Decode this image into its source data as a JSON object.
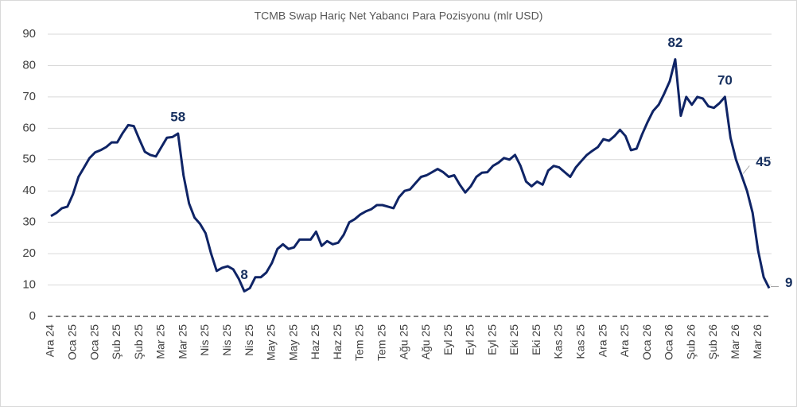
{
  "chart_data": {
    "type": "line",
    "title": "TCMB Swap Hariç Net Yabancı Para Pozisyonu (mlr USD)",
    "color": "#0f2466",
    "ylim": [
      0,
      90
    ],
    "yticks": [
      0,
      10,
      20,
      30,
      40,
      50,
      60,
      70,
      80,
      90
    ],
    "grid": true,
    "categories": [
      "Ara 24",
      null,
      null,
      null,
      "Oca 25",
      null,
      null,
      null,
      "Oca 25",
      null,
      null,
      null,
      "Şub 25",
      null,
      null,
      null,
      "Şub 25",
      null,
      null,
      null,
      "Mar 25",
      null,
      null,
      null,
      "Mar 25",
      null,
      null,
      null,
      "Nis 25",
      null,
      null,
      null,
      "Nis 25",
      null,
      null,
      null,
      "Nis 25",
      null,
      null,
      null,
      "May 25",
      null,
      null,
      null,
      "May 25",
      null,
      null,
      null,
      "Haz 25",
      null,
      null,
      null,
      "Haz 25",
      null,
      null,
      null,
      "Tem 25",
      null,
      null,
      null,
      "Tem 25",
      null,
      null,
      null,
      "Ağu 25",
      null,
      null,
      null,
      "Ağu 25",
      null,
      null,
      null,
      "Eyl 25",
      null,
      null,
      null,
      "Eyl 25",
      null,
      null,
      null,
      "Eyl 25",
      null,
      null,
      null,
      "Eki 25",
      null,
      null,
      null,
      "Eki 25",
      null,
      null,
      null,
      "Kas 25",
      null,
      null,
      null,
      "Kas 25",
      null,
      null,
      null,
      "Ara 25",
      null,
      null,
      null,
      "Ara 25",
      null,
      null,
      null,
      "Oca 26",
      null,
      null,
      null,
      "Oca 26",
      null,
      null,
      null,
      "Şub 26",
      null,
      null,
      null,
      "Şub 26",
      null,
      null,
      null,
      "Mar 26",
      null,
      null,
      null,
      "Mar 26",
      null,
      null
    ],
    "values": [
      32,
      33,
      34.5,
      35,
      39,
      44.5,
      47.5,
      50.5,
      52.3,
      53,
      54,
      55.5,
      55.5,
      58.5,
      61,
      60.7,
      56.5,
      52.5,
      51.5,
      51,
      54,
      57,
      57.2,
      58.3,
      45,
      36,
      31.5,
      29.5,
      26.5,
      20,
      14.5,
      15.5,
      16,
      15,
      12,
      8,
      9,
      12.5,
      12.5,
      14,
      17,
      21.5,
      23,
      21.5,
      22,
      24.5,
      24.5,
      24.5,
      27,
      22.5,
      24,
      23,
      23.5,
      26,
      30,
      31,
      32.5,
      33.5,
      34.2,
      35.5,
      35.5,
      35,
      34.5,
      38,
      40,
      40.5,
      42.5,
      44.5,
      45,
      46,
      47,
      46,
      44.5,
      45,
      42,
      39.5,
      41.5,
      44.5,
      45.8,
      46,
      48,
      49,
      50.5,
      50,
      51.5,
      48,
      43,
      41.5,
      43,
      42,
      46.5,
      48,
      47.5,
      46,
      44.5,
      47.5,
      49.5,
      51.5,
      52.8,
      54,
      56.5,
      56,
      57.5,
      59.5,
      57.5,
      53,
      53.5,
      58,
      62,
      65.5,
      67.5,
      71,
      75,
      82,
      64,
      70,
      67.5,
      70,
      69.5,
      67,
      66.5,
      68,
      70,
      57,
      50,
      45,
      40,
      33,
      21,
      12.5,
      9
    ],
    "value_labels": [
      null,
      null,
      null,
      null,
      null,
      null,
      null,
      null,
      null,
      null,
      null,
      null,
      null,
      null,
      null,
      null,
      null,
      null,
      null,
      null,
      null,
      null,
      null,
      "58",
      null,
      null,
      null,
      null,
      null,
      null,
      null,
      null,
      null,
      null,
      null,
      "8",
      null,
      null,
      null,
      null,
      null,
      null,
      null,
      null,
      null,
      null,
      null,
      null,
      null,
      null,
      null,
      null,
      null,
      null,
      null,
      null,
      null,
      null,
      null,
      null,
      null,
      null,
      null,
      null,
      null,
      null,
      null,
      null,
      null,
      null,
      null,
      null,
      null,
      null,
      null,
      null,
      null,
      null,
      null,
      null,
      null,
      null,
      null,
      null,
      null,
      null,
      null,
      null,
      null,
      null,
      null,
      null,
      null,
      null,
      null,
      null,
      null,
      null,
      null,
      null,
      null,
      null,
      null,
      null,
      null,
      null,
      null,
      null,
      null,
      null,
      null,
      null,
      null,
      "82",
      null,
      null,
      null,
      null,
      null,
      null,
      null,
      null,
      "70",
      null,
      null,
      "45",
      null,
      null,
      null,
      null,
      "9"
    ]
  }
}
